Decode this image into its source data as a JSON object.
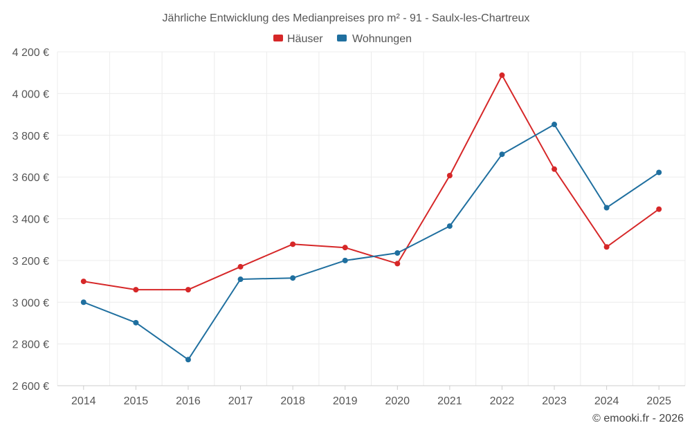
{
  "chart_data": {
    "type": "line",
    "title": "Jährliche Entwicklung des Medianpreises pro m² - 91 - Saulx-les-Chartreux",
    "categories": [
      "2014",
      "2015",
      "2016",
      "2017",
      "2018",
      "2019",
      "2020",
      "2021",
      "2022",
      "2023",
      "2024",
      "2025"
    ],
    "series": [
      {
        "name": "Häuser",
        "color": "#d62728",
        "values": [
          3100,
          3060,
          3060,
          3170,
          3278,
          3262,
          3185,
          3607,
          4088,
          3638,
          3265,
          3446
        ]
      },
      {
        "name": "Wohnungen",
        "color": "#1f6f9f",
        "values": [
          3000,
          2902,
          2725,
          3110,
          3116,
          3200,
          3236,
          3365,
          3709,
          3852,
          3453,
          3622
        ]
      }
    ],
    "ylim": [
      2600,
      4200
    ],
    "yticks": [
      2600,
      2800,
      3000,
      3200,
      3400,
      3600,
      3800,
      4000,
      4200
    ],
    "ytick_labels": [
      "2 600 €",
      "2 800 €",
      "3 000 €",
      "3 200 €",
      "3 400 €",
      "3 600 €",
      "3 800 €",
      "4 000 €",
      "4 200 €"
    ],
    "xlabel": "",
    "ylabel": "",
    "grid": true,
    "legend_position": "top-center"
  },
  "credit": "© emooki.fr - 2026"
}
